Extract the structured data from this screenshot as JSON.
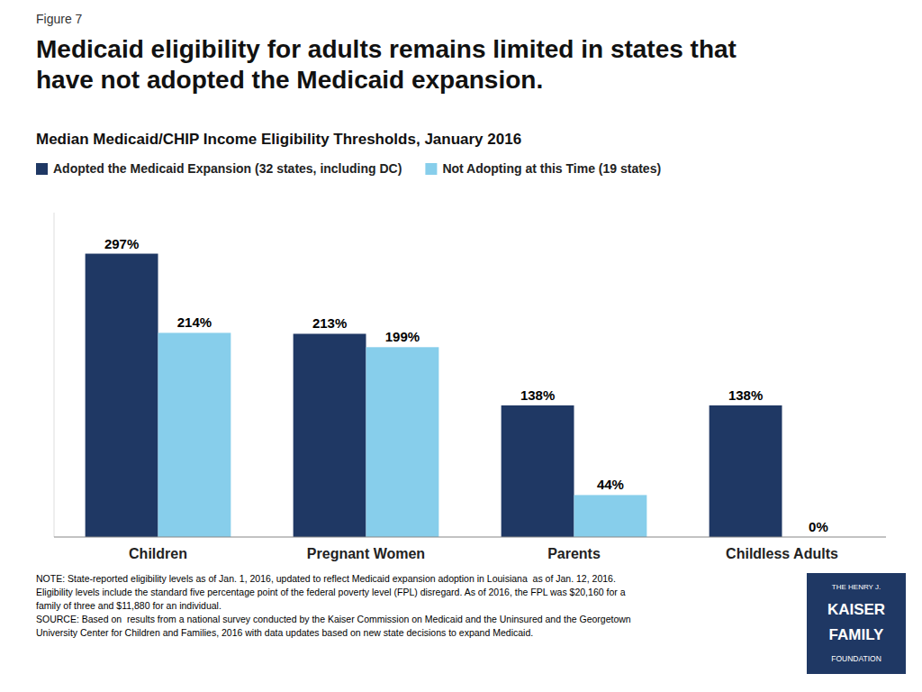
{
  "chart_data": {
    "type": "bar",
    "figure_label": "Figure 7",
    "title": "Medicaid eligibility for adults remains limited in states that\nhave not adopted the Medicaid expansion.",
    "subtitle": "Median Medicaid/CHIP Income Eligibility Thresholds, January 2016",
    "categories": [
      "Children",
      "Pregnant Women",
      "Parents",
      "Childless Adults"
    ],
    "series": [
      {
        "name": "Adopted the Medicaid Expansion (32 states, including DC)",
        "color": "#1f3864",
        "values": [
          297,
          213,
          138,
          138
        ],
        "value_labels": [
          "297%",
          "213%",
          "138%",
          "138%"
        ]
      },
      {
        "name": "Not Adopting at this Time (19 states)",
        "color": "#87ceeb",
        "values": [
          214,
          199,
          44,
          0
        ],
        "value_labels": [
          "214%",
          "199%",
          "44%",
          "0%"
        ]
      }
    ],
    "ylim": [
      0,
      340
    ],
    "yticks": [],
    "grid": false,
    "legend": "top",
    "data_labels": true,
    "tick_labels": "x",
    "note": "NOTE: State-reported eligibility levels as of Jan. 1, 2016, updated to reflect Medicaid expansion adoption in Louisiana  as of Jan. 12, 2016.\nEligibility levels include the standard five percentage point of the federal poverty level (FPL) disregard. As of 2016, the FPL was $20,160 for a\nfamily of three and $11,880 for an individual.\nSOURCE: Based on  results from a national survey conducted by the Kaiser Commission on Medicaid and the Uninsured and the Georgetown\nUniversity Center for Children and Families, 2016 with data updates based on new state decisions to expand Medicaid.",
    "logo_text": [
      "THE HENRY J.",
      "KAISER",
      "FAMILY",
      "FOUNDATION"
    ]
  }
}
